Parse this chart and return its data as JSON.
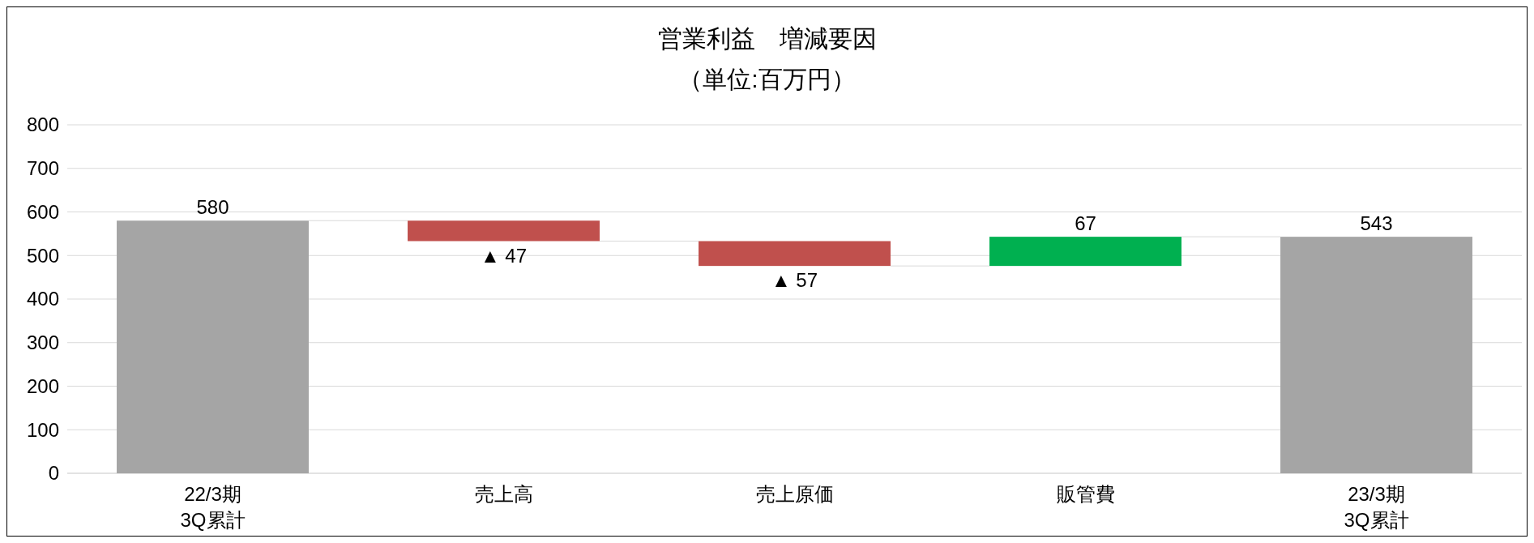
{
  "chart_data": {
    "type": "bar",
    "title": "営業利益　増減要因",
    "subtitle": "（単位:百万円）",
    "categories": [
      "22/3期\n3Q累計",
      "売上高",
      "売上原価",
      "販管費",
      "23/3期\n3Q累計"
    ],
    "values": [
      580,
      -47,
      -57,
      67,
      543
    ],
    "base": [
      0,
      580,
      533,
      476,
      0
    ],
    "colors": [
      "#a5a5a5",
      "#c0504d",
      "#c0504d",
      "#00b050",
      "#a5a5a5"
    ],
    "value_labels": [
      "580",
      "▲ 47",
      "▲ 57",
      "67",
      "543"
    ],
    "ylim": [
      0,
      800
    ],
    "yticks": [
      0,
      100,
      200,
      300,
      400,
      500,
      600,
      700,
      800
    ],
    "grid": "y"
  }
}
